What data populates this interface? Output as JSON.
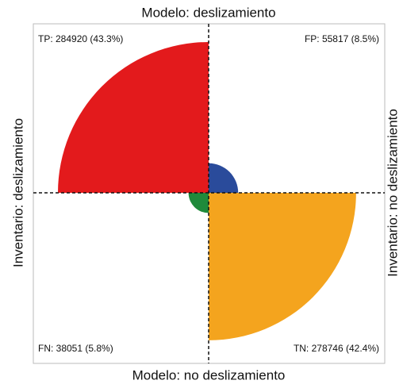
{
  "chart_data": {
    "type": "fourfold",
    "top_label": "Modelo: deslizamiento",
    "bottom_label": "Modelo: no deslizamiento",
    "left_label": "Inventario: deslizamiento",
    "right_label": "Inventario: no deslizamiento",
    "categories": [
      "TP",
      "FP",
      "FN",
      "TN"
    ],
    "values": [
      284920,
      55817,
      38051,
      278746
    ],
    "value_labels": [
      "TP: 284920 (43.3%)",
      "FP: 55817 (8.5%)",
      "FN: 38051 (5.8%)",
      "TN: 278746 (42.4%)"
    ],
    "colors": [
      "#e31a1c",
      "#2a4b9b",
      "#1f8a3b",
      "#f4a41e"
    ]
  }
}
